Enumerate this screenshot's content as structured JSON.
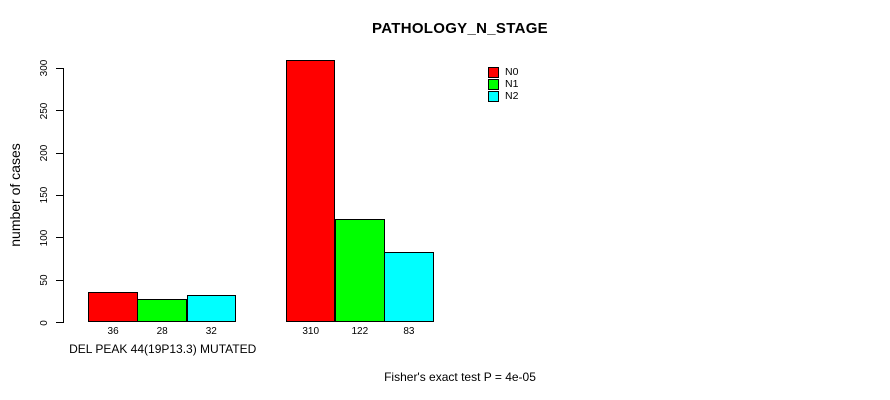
{
  "chart_data": {
    "type": "bar",
    "title": "PATHOLOGY_N_STAGE",
    "ylabel": "number of cases",
    "xlabel": "",
    "ylim": [
      0,
      300
    ],
    "yticks": [
      0,
      50,
      100,
      150,
      200,
      250,
      300
    ],
    "grid": false,
    "legend_position": "top-right",
    "categories": [
      "DEL PEAK 44(19P13.3) MUTATED",
      ""
    ],
    "series": [
      {
        "name": "N0",
        "color": "#FF0000",
        "values": [
          36,
          310
        ]
      },
      {
        "name": "N1",
        "color": "#00FF00",
        "values": [
          28,
          122
        ]
      },
      {
        "name": "N2",
        "color": "#00FFFF",
        "values": [
          32,
          83
        ]
      }
    ],
    "show_value_labels_below_bars": true,
    "footnote": "Fisher's exact test P = 4e-05",
    "axis_color": "#000000",
    "bar_border_color": "#000000",
    "background_color": "#FFFFFF"
  }
}
